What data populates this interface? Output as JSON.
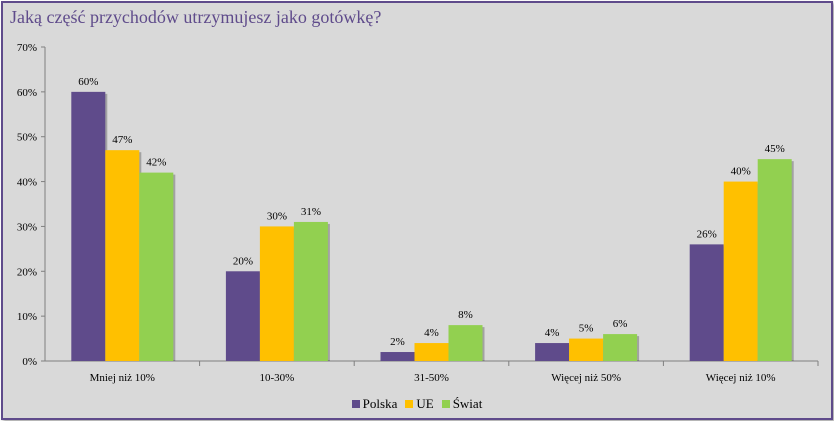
{
  "chart_data": {
    "type": "bar",
    "title": "Jaką część przychodów utrzymujesz jako gotówkę?",
    "categories": [
      "Mniej niż 10%",
      "10-30%",
      "31-50%",
      "Więcej niż 50%",
      "Więcej niż 10%"
    ],
    "series": [
      {
        "name": "Polska",
        "color": "#5f4b8b",
        "values": [
          60,
          20,
          2,
          4,
          26
        ],
        "labels": [
          "60%",
          "20%",
          "2%",
          "4%",
          "26%"
        ]
      },
      {
        "name": "UE",
        "color": "#ffc000",
        "values": [
          47,
          30,
          4,
          5,
          40
        ],
        "labels": [
          "47%",
          "30%",
          "4%",
          "5%",
          "40%"
        ]
      },
      {
        "name": "Świat",
        "color": "#92d050",
        "values": [
          42,
          31,
          8,
          6,
          45
        ],
        "labels": [
          "42%",
          "31%",
          "8%",
          "6%",
          "45%"
        ]
      }
    ],
    "ylim": [
      0,
      70
    ],
    "yticks": [
      "0%",
      "10%",
      "20%",
      "30%",
      "40%",
      "50%",
      "60%",
      "70%"
    ],
    "grid": false,
    "legend_position": "bottom"
  }
}
